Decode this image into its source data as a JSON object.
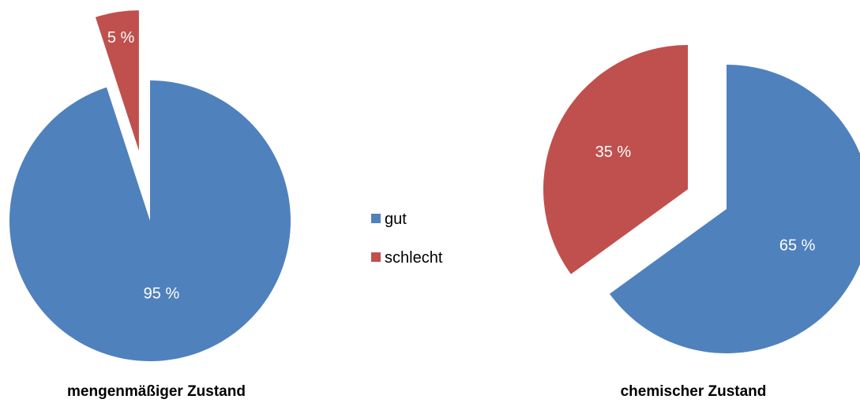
{
  "legend": {
    "items": [
      {
        "label": "gut",
        "color": "#4F81BD"
      },
      {
        "label": "schlecht",
        "color": "#C0504D"
      }
    ]
  },
  "chart_data": [
    {
      "type": "pie",
      "title": "mengenmäßiger Zustand",
      "categories": [
        "gut",
        "schlecht"
      ],
      "values": [
        95,
        5
      ],
      "value_labels": [
        "95 %",
        "5 %"
      ],
      "colors": [
        "#4F81BD",
        "#C0504D"
      ],
      "exploded": "schlecht"
    },
    {
      "type": "pie",
      "title": "chemischer Zustand",
      "categories": [
        "gut",
        "schlecht"
      ],
      "values": [
        65,
        35
      ],
      "value_labels": [
        "65 %",
        "35 %"
      ],
      "colors": [
        "#4F81BD",
        "#C0504D"
      ],
      "exploded": "schlecht"
    }
  ]
}
